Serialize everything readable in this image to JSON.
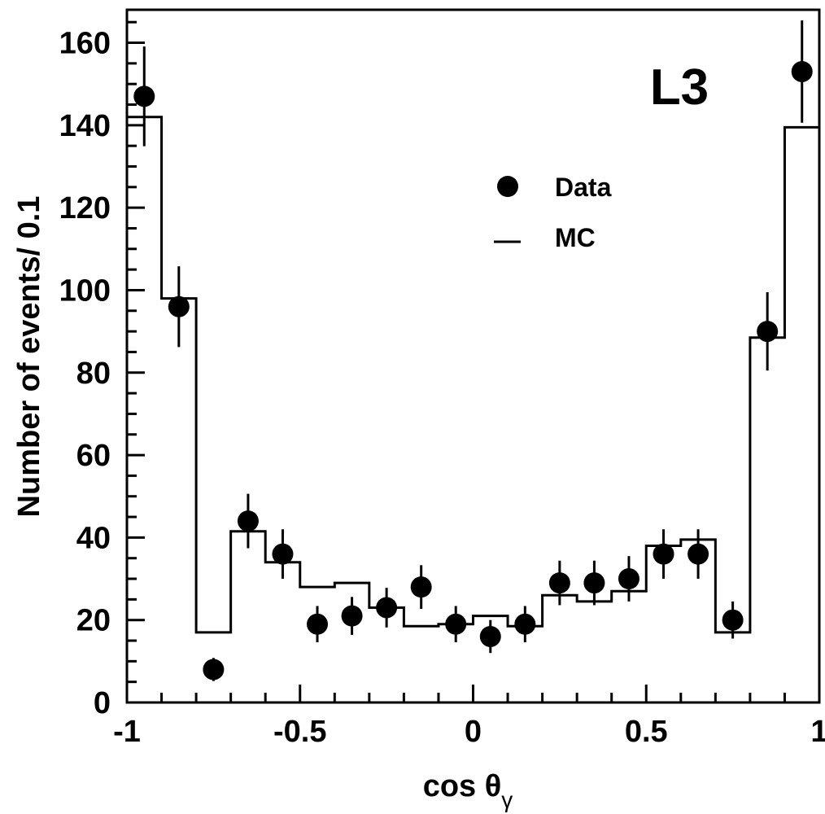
{
  "chart_data": {
    "type": "scatter",
    "title": "",
    "experiment_label": "L3",
    "xlabel": "cos θ",
    "xlabel_subscript": "γ",
    "ylabel": "Number of events/ 0.1",
    "xlim": [
      -1,
      1
    ],
    "ylim": [
      0,
      168
    ],
    "xticks": [
      -1,
      -0.5,
      0,
      0.5,
      1
    ],
    "xtick_labels": [
      "-1",
      "-0.5",
      "0",
      "0.5",
      "1"
    ],
    "yticks": [
      0,
      20,
      40,
      60,
      80,
      100,
      120,
      140,
      160
    ],
    "ytick_labels": [
      "0",
      "20",
      "40",
      "60",
      "80",
      "100",
      "120",
      "140",
      "160"
    ],
    "legend_position": "upper-center-right",
    "series": [
      {
        "name": "Data",
        "kind": "points-with-errors",
        "x": [
          -0.95,
          -0.85,
          -0.75,
          -0.65,
          -0.55,
          -0.45,
          -0.35,
          -0.25,
          -0.15,
          -0.05,
          0.05,
          0.15,
          0.25,
          0.35,
          0.45,
          0.55,
          0.65,
          0.75,
          0.85,
          0.95
        ],
        "y": [
          147,
          96,
          8,
          44,
          36,
          19,
          21,
          23,
          28,
          19,
          16,
          19,
          29,
          29,
          30,
          36,
          36,
          20,
          90,
          153
        ],
        "yerr": [
          12.1,
          9.8,
          2.8,
          6.6,
          6.0,
          4.4,
          4.6,
          4.8,
          5.3,
          4.4,
          4.0,
          4.4,
          5.4,
          5.4,
          5.5,
          6.0,
          6.0,
          4.5,
          9.5,
          12.4
        ]
      },
      {
        "name": "MC",
        "kind": "histogram",
        "bin_edges": [
          -1.0,
          -0.9,
          -0.8,
          -0.7,
          -0.6,
          -0.5,
          -0.4,
          -0.3,
          -0.2,
          -0.1,
          0.0,
          0.1,
          0.2,
          0.3,
          0.4,
          0.5,
          0.6,
          0.7,
          0.8,
          0.9,
          1.0
        ],
        "values": [
          142,
          98,
          17,
          41.5,
          34,
          28,
          29,
          23,
          18.5,
          19,
          21,
          18.5,
          26,
          24.5,
          27,
          38,
          39.5,
          17,
          88.5,
          139.5
        ]
      }
    ]
  }
}
